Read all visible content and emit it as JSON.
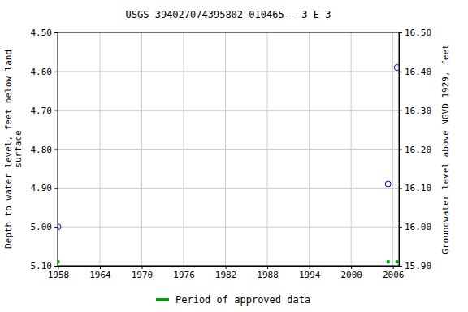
{
  "chart_data": {
    "type": "scatter",
    "title": "USGS 394027074395802 010465-- 3 E 3",
    "ylabel": "Depth to water level, feet below land\nsurface",
    "y2label": "Groundwater level above NGVD 1929, feet",
    "x": [
      1958.0,
      2005.3,
      2006.6
    ],
    "xlim": [
      1957.95,
      2006.85
    ],
    "xticks": [
      1958,
      1964,
      1970,
      1976,
      1982,
      1988,
      1994,
      2000,
      2006
    ],
    "ylim": [
      5.1,
      4.5
    ],
    "yticks": [
      {
        "value": 4.5,
        "label": "4.50"
      },
      {
        "value": 4.6,
        "label": "4.60"
      },
      {
        "value": 4.7,
        "label": "4.70"
      },
      {
        "value": 4.8,
        "label": "4.80"
      },
      {
        "value": 4.9,
        "label": "4.90"
      },
      {
        "value": 5.0,
        "label": "5.00"
      },
      {
        "value": 5.1,
        "label": "5.10"
      }
    ],
    "y2lim": [
      15.9,
      16.5
    ],
    "y2ticks": [
      {
        "value": 15.9,
        "label": "15.90"
      },
      {
        "value": 16.0,
        "label": "16.00"
      },
      {
        "value": 16.1,
        "label": "16.10"
      },
      {
        "value": 16.2,
        "label": "16.20"
      },
      {
        "value": 16.3,
        "label": "16.30"
      },
      {
        "value": 16.4,
        "label": "16.40"
      },
      {
        "value": 16.5,
        "label": "16.50"
      }
    ],
    "grid": true,
    "legend": "bottom",
    "series": [
      {
        "color": "#0000cc",
        "marker": "circle-open",
        "values": [
          5.0,
          4.89,
          4.59
        ]
      },
      {
        "name": "Period of approved data",
        "color": "#00a000",
        "marker": "square",
        "values": [
          5.09,
          5.09,
          5.09
        ]
      }
    ]
  }
}
